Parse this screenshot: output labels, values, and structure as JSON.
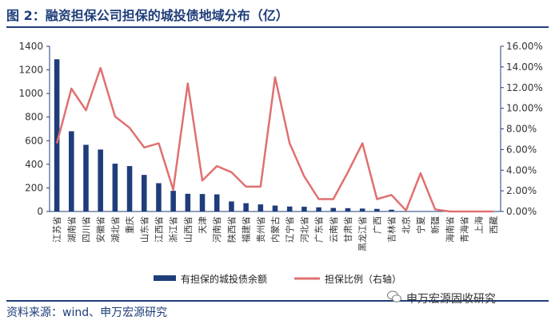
{
  "header": {
    "title": "图 2：融资担保公司担保的城投债地域分布（亿）"
  },
  "footer": {
    "source": "资料来源：wind、申万宏源研究"
  },
  "watermark": {
    "text": "申万宏源固收研究",
    "icon": "wechat-icon"
  },
  "colors": {
    "bar": "#1f3d7a",
    "line": "#e07070",
    "axis": "#1f3d7a",
    "text": "#333333"
  },
  "chart_data": {
    "type": "bar",
    "categories": [
      "江苏省",
      "湖南省",
      "四川省",
      "安徽省",
      "湖北省",
      "重庆",
      "山东省",
      "江西省",
      "浙江省",
      "山西省",
      "天津",
      "河南省",
      "陕西省",
      "福建省",
      "贵州省",
      "内蒙古",
      "辽宁省",
      "河北省",
      "广东省",
      "云南省",
      "甘肃省",
      "黑龙江省",
      "广西",
      "吉林省",
      "北京",
      "宁夏",
      "新疆",
      "海南省",
      "青海省",
      "上海",
      "西藏"
    ],
    "series": [
      {
        "name": "有担保的城投债余额",
        "type": "bar",
        "axis": "left",
        "values": [
          1290,
          680,
          565,
          525,
          405,
          385,
          310,
          240,
          175,
          150,
          148,
          145,
          85,
          70,
          60,
          50,
          42,
          40,
          35,
          30,
          28,
          25,
          22,
          15,
          0,
          0,
          0,
          0,
          0,
          0,
          0
        ]
      },
      {
        "name": "担保比例（右轴）",
        "type": "line",
        "axis": "right",
        "values": [
          6.6,
          11.9,
          9.8,
          13.9,
          9.2,
          8.1,
          6.2,
          6.6,
          2.1,
          12.4,
          3.0,
          4.4,
          3.8,
          2.4,
          2.4,
          13.0,
          6.6,
          3.4,
          1.2,
          1.2,
          3.8,
          6.6,
          1.2,
          1.6,
          0.1,
          3.7,
          0.2,
          0.0,
          0.0,
          0.0,
          0.0
        ]
      }
    ],
    "yaxis_left": {
      "min": 0,
      "max": 1400,
      "step": 200,
      "ticks": [
        "0",
        "200",
        "400",
        "600",
        "800",
        "1000",
        "1200",
        "1400"
      ]
    },
    "yaxis_right": {
      "min": 0,
      "max": 16,
      "step": 2,
      "ticks": [
        "0.00%",
        "2.00%",
        "4.00%",
        "6.00%",
        "8.00%",
        "10.00%",
        "12.00%",
        "14.00%",
        "16.00%"
      ]
    },
    "grid": false,
    "legend": {
      "position": "bottom",
      "items": [
        {
          "label": "有担保的城投债余额",
          "marker": "bar"
        },
        {
          "label": "担保比例（右轴）",
          "marker": "line"
        }
      ]
    }
  }
}
